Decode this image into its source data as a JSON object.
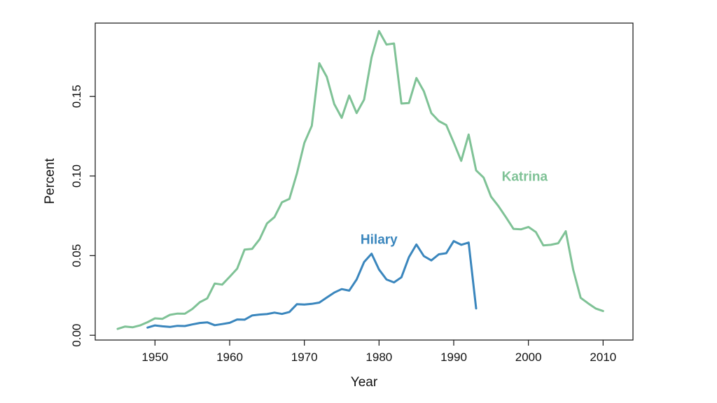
{
  "chart_data": {
    "type": "line",
    "xlabel": "Year",
    "ylabel": "Percent",
    "xlim": [
      1942,
      2014
    ],
    "ylim": [
      -0.003,
      0.196
    ],
    "x_ticks": [
      1950,
      1960,
      1970,
      1980,
      1990,
      2000,
      2010
    ],
    "y_ticks": [
      0.0,
      0.05,
      0.1,
      0.15
    ],
    "x_tick_labels": [
      "1950",
      "1960",
      "1970",
      "1980",
      "1990",
      "2000",
      "2010"
    ],
    "y_tick_labels": [
      "0.00",
      "0.05",
      "0.10",
      "0.15"
    ],
    "grid": false,
    "legend": "none",
    "series": [
      {
        "name": "Katrina",
        "color": "#7fc296",
        "label_at": [
          1999.5,
          0.1
        ],
        "x": [
          1945,
          1946,
          1947,
          1948,
          1949,
          1950,
          1951,
          1952,
          1953,
          1954,
          1955,
          1956,
          1957,
          1958,
          1959,
          1960,
          1961,
          1962,
          1963,
          1964,
          1965,
          1966,
          1967,
          1968,
          1969,
          1970,
          1971,
          1972,
          1973,
          1974,
          1975,
          1976,
          1977,
          1978,
          1979,
          1980,
          1981,
          1982,
          1983,
          1984,
          1985,
          1986,
          1987,
          1988,
          1989,
          1990,
          1991,
          1992,
          1993,
          1994,
          1995,
          1996,
          1997,
          1998,
          1999,
          2000,
          2001,
          2002,
          2003,
          2004,
          2005,
          2006,
          2007,
          2008,
          2009,
          2010
        ],
        "values": [
          0.004,
          0.0055,
          0.005,
          0.0062,
          0.0082,
          0.0106,
          0.0103,
          0.0128,
          0.0136,
          0.0135,
          0.0165,
          0.0207,
          0.0232,
          0.0325,
          0.0318,
          0.0367,
          0.0418,
          0.0538,
          0.0542,
          0.0602,
          0.0702,
          0.0742,
          0.0835,
          0.0856,
          0.1015,
          0.1208,
          0.1315,
          0.1708,
          0.1622,
          0.1452,
          0.1365,
          0.1505,
          0.1395,
          0.148,
          0.1745,
          0.191,
          0.1825,
          0.1832,
          0.1455,
          0.1458,
          0.1615,
          0.1532,
          0.1395,
          0.1345,
          0.132,
          0.121,
          0.1095,
          0.126,
          0.1035,
          0.099,
          0.087,
          0.081,
          0.074,
          0.0668,
          0.0665,
          0.068,
          0.0648,
          0.0564,
          0.0568,
          0.0578,
          0.0653,
          0.041,
          0.0235,
          0.02,
          0.0168,
          0.0152
        ]
      },
      {
        "name": "Hilary",
        "color": "#3a86bd",
        "label_at": [
          1980,
          0.0605
        ],
        "x": [
          1949,
          1950,
          1951,
          1952,
          1953,
          1954,
          1955,
          1956,
          1957,
          1958,
          1959,
          1960,
          1961,
          1962,
          1963,
          1964,
          1965,
          1966,
          1967,
          1968,
          1969,
          1970,
          1971,
          1972,
          1973,
          1974,
          1975,
          1976,
          1977,
          1978,
          1979,
          1980,
          1981,
          1982,
          1983,
          1984,
          1985,
          1986,
          1987,
          1988,
          1989,
          1990,
          1991,
          1992,
          1993
        ],
        "values": [
          0.0048,
          0.0062,
          0.0056,
          0.0052,
          0.0059,
          0.0058,
          0.0068,
          0.0077,
          0.0081,
          0.0063,
          0.007,
          0.0078,
          0.0099,
          0.0098,
          0.0124,
          0.013,
          0.0133,
          0.0142,
          0.0134,
          0.0146,
          0.0195,
          0.0193,
          0.0197,
          0.0205,
          0.0237,
          0.0268,
          0.029,
          0.028,
          0.035,
          0.046,
          0.0512,
          0.0413,
          0.035,
          0.0332,
          0.0364,
          0.049,
          0.057,
          0.0497,
          0.047,
          0.0508,
          0.0515,
          0.0591,
          0.0568,
          0.0582,
          0.0168
        ]
      }
    ]
  }
}
